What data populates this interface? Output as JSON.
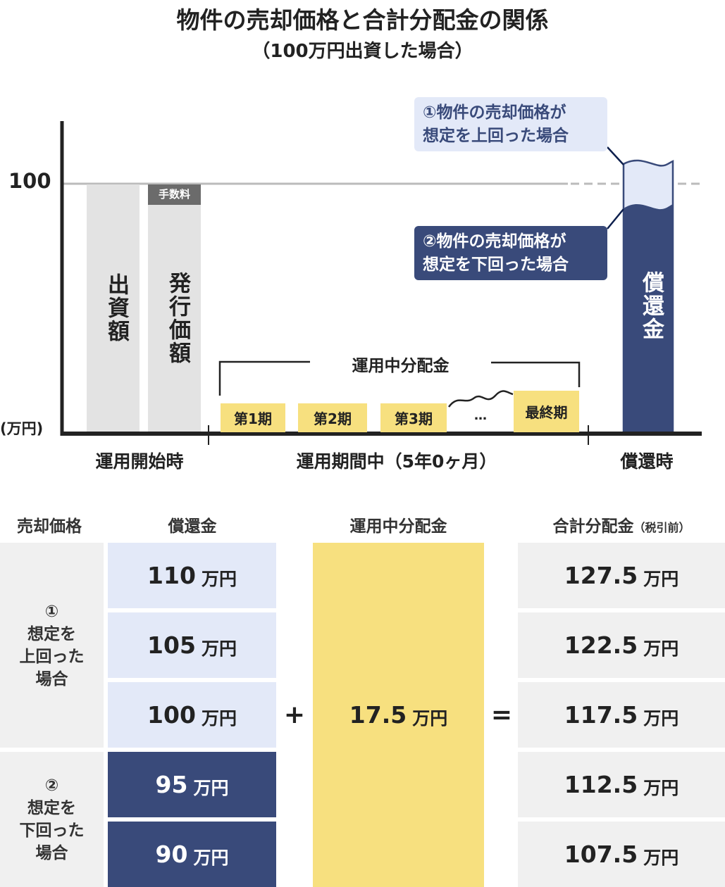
{
  "title": {
    "line1": "物件の売却価格と合計分配金の関係",
    "line2": "（100万円出資した場合）"
  },
  "axis": {
    "tick_100": "100",
    "unit": "(万円)"
  },
  "bars": {
    "investment": "出資額",
    "issue_price": "発行価額",
    "fee": "手数料",
    "redemption": "償還金"
  },
  "distribution": {
    "label": "運用中分配金",
    "periods": [
      "第1期",
      "第2期",
      "第3期",
      "…",
      "最終期"
    ]
  },
  "callouts": {
    "above": [
      "①物件の売却価格が",
      "想定を上回った場合"
    ],
    "below": [
      "②物件の売却価格が",
      "想定を下回った場合"
    ]
  },
  "phases": [
    "運用開始時",
    "運用期間中（5年0ヶ月）",
    "償還時"
  ],
  "colors": {
    "navy": "#394a7a",
    "light_blue": "#e3e9f8",
    "yellow": "#f7e07f",
    "gray": "#e3e3e3",
    "fee_gray": "#6b6b6b"
  },
  "table": {
    "headers": {
      "sale_price": "売却価格",
      "redemption": "償還金",
      "distribution": "運用中分配金",
      "total": "合計分配金",
      "total_note": "（税引前）"
    },
    "groups": [
      {
        "mark": "①",
        "label": [
          "想定を",
          "上回った",
          "場合"
        ]
      },
      {
        "mark": "②",
        "label": [
          "想定を",
          "下回った",
          "場合"
        ]
      }
    ],
    "unit": "万円",
    "redemption_values": [
      "110",
      "105",
      "100",
      "95",
      "90"
    ],
    "distribution_value": "17.5",
    "total_values": [
      "127.5",
      "122.5",
      "117.5",
      "112.5",
      "107.5"
    ],
    "plus": "+",
    "equals": "="
  }
}
